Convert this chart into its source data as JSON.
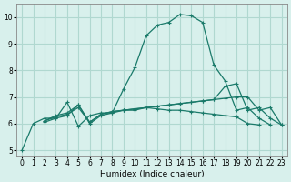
{
  "bg_color": "#d8f0ec",
  "grid_color": "#b0d8d0",
  "line_color": "#1a7a6a",
  "marker": "+",
  "xlim": [
    -0.5,
    23.5
  ],
  "ylim": [
    4.8,
    10.5
  ],
  "xlabel": "Humidex (Indice chaleur)",
  "xticks": [
    0,
    1,
    2,
    3,
    4,
    5,
    6,
    7,
    8,
    9,
    10,
    11,
    12,
    13,
    14,
    15,
    16,
    17,
    18,
    19,
    20,
    21,
    22,
    23
  ],
  "yticks": [
    5,
    6,
    7,
    8,
    9,
    10
  ],
  "line_x_ranges": [
    [
      0,
      1,
      2,
      3,
      4,
      5,
      6,
      7,
      8,
      9,
      10,
      11,
      12,
      13,
      14,
      15,
      16,
      17,
      18,
      19,
      20,
      21,
      22
    ],
    [
      2,
      3,
      4,
      5,
      6,
      7,
      8,
      9,
      10,
      11,
      12,
      13,
      14,
      15,
      16,
      17,
      18,
      19,
      20,
      21
    ],
    [
      2,
      3,
      4,
      5,
      6,
      7,
      8,
      9,
      10,
      11,
      12,
      13,
      14,
      15,
      16,
      17,
      18,
      19,
      20,
      21,
      22,
      23
    ],
    [
      2,
      3,
      4,
      5,
      6,
      7,
      8,
      9,
      10,
      11,
      12,
      13,
      14,
      15,
      16,
      17,
      18,
      19,
      20,
      21,
      22,
      23
    ]
  ],
  "lines": [
    [
      5.0,
      6.0,
      6.2,
      6.2,
      6.8,
      5.9,
      6.3,
      6.4,
      6.4,
      7.3,
      8.1,
      9.3,
      9.7,
      9.8,
      10.1,
      10.05,
      9.8,
      8.2,
      7.6,
      6.5,
      6.6,
      6.2,
      5.95
    ],
    [
      6.05,
      6.2,
      6.3,
      6.7,
      6.0,
      6.3,
      6.4,
      6.5,
      6.5,
      6.6,
      6.55,
      6.5,
      6.5,
      6.45,
      6.4,
      6.35,
      6.3,
      6.25,
      6.0,
      5.95
    ],
    [
      6.1,
      6.25,
      6.35,
      6.6,
      6.05,
      6.35,
      6.45,
      6.5,
      6.55,
      6.6,
      6.65,
      6.7,
      6.75,
      6.8,
      6.85,
      6.9,
      6.95,
      7.0,
      7.0,
      6.5,
      6.6,
      5.95
    ],
    [
      6.1,
      6.3,
      6.4,
      6.7,
      6.05,
      6.35,
      6.45,
      6.5,
      6.55,
      6.6,
      6.65,
      6.7,
      6.75,
      6.8,
      6.85,
      6.9,
      7.4,
      7.5,
      6.5,
      6.6,
      6.2,
      5.95
    ]
  ]
}
